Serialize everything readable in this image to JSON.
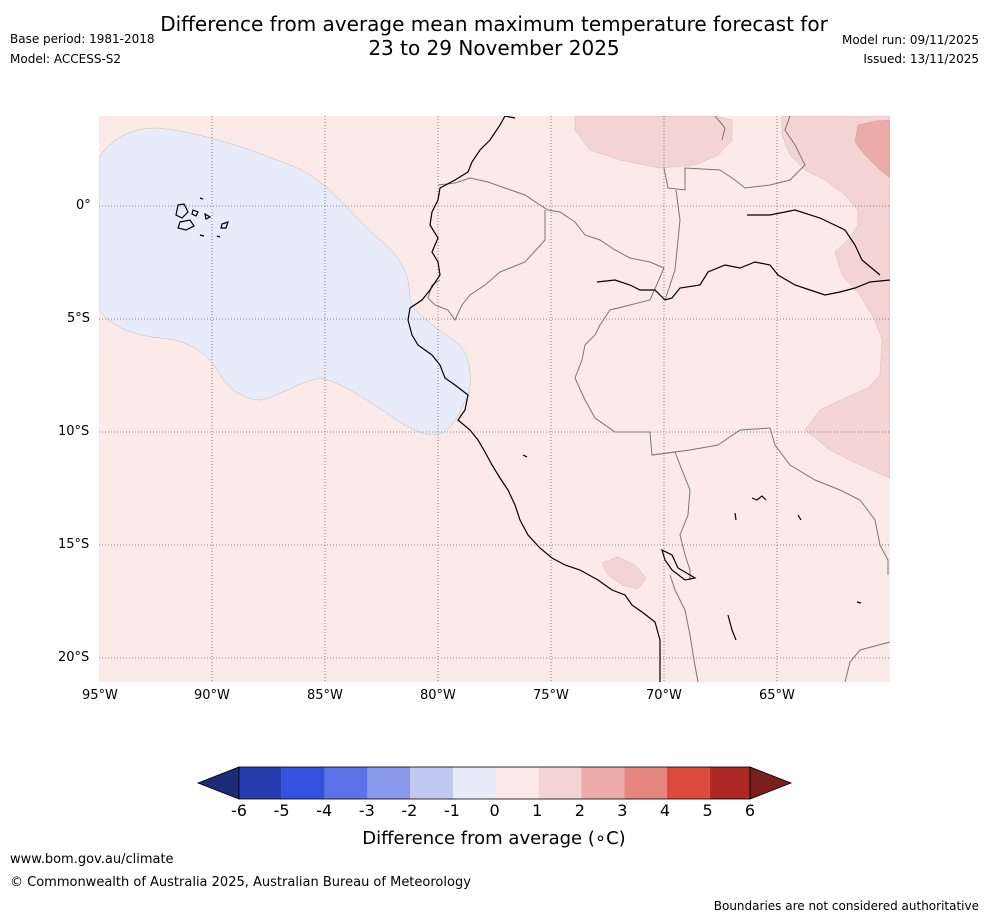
{
  "title_line1": "Difference from average mean maximum temperature forecast for",
  "title_line2": "23 to 29 November 2025",
  "base_period": "Base period: 1981-2018",
  "model": "Model: ACCESS-S2",
  "model_run": "Model run: 09/11/2025",
  "issued": "Issued: 13/11/2025",
  "lat_labels": [
    "0°",
    "5°S",
    "10°S",
    "15°S",
    "20°S"
  ],
  "lon_labels": [
    "95°W",
    "90°W",
    "85°W",
    "80°W",
    "75°W",
    "70°W",
    "65°W"
  ],
  "colorbar": {
    "ticks": [
      "-6",
      "-5",
      "-4",
      "-3",
      "-2",
      "-1",
      "0",
      "1",
      "2",
      "3",
      "4",
      "5",
      "6"
    ],
    "title": "Difference from average (∘C)",
    "colors": {
      "lt_m6": "#1c2a78",
      "m6_m5": "#263db0",
      "m5_m4": "#3352e0",
      "m4_m3": "#5b73e6",
      "m3_m2": "#8898ea",
      "m2_m1": "#c2c8f4",
      "m1_0": "#e8ebfa",
      "0_1": "#fbeae8",
      "1_2": "#f3d4d2",
      "2_3": "#ebaca8",
      "3_4": "#e5877f",
      "4_5": "#dc4a3c",
      "5_6": "#ad2923",
      "gt_6": "#7a1f1c"
    }
  },
  "footer": {
    "website": "www.bom.gov.au/climate",
    "copyright": "© Commonwealth of Australia 2025, Australian Bureau of Meteorology",
    "disclaimer": "Boundaries are not considered authoritative"
  }
}
